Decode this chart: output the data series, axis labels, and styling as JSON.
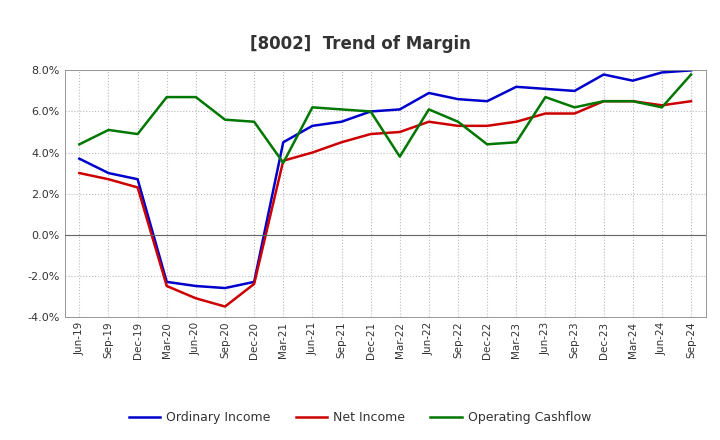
{
  "title": "[8002]  Trend of Margin",
  "x_labels": [
    "Jun-19",
    "Sep-19",
    "Dec-19",
    "Mar-20",
    "Jun-20",
    "Sep-20",
    "Dec-20",
    "Mar-21",
    "Jun-21",
    "Sep-21",
    "Dec-21",
    "Mar-22",
    "Jun-22",
    "Sep-22",
    "Dec-22",
    "Mar-23",
    "Jun-23",
    "Sep-23",
    "Dec-23",
    "Mar-24",
    "Jun-24",
    "Sep-24"
  ],
  "ordinary_income": [
    3.7,
    3.0,
    2.7,
    -2.3,
    -2.5,
    -2.6,
    -2.3,
    4.5,
    5.3,
    5.5,
    6.0,
    6.1,
    6.9,
    6.6,
    6.5,
    7.2,
    7.1,
    7.0,
    7.8,
    7.5,
    7.9,
    8.0
  ],
  "net_income": [
    3.0,
    2.7,
    2.3,
    -2.5,
    -3.1,
    -3.5,
    -2.4,
    3.6,
    4.0,
    4.5,
    4.9,
    5.0,
    5.5,
    5.3,
    5.3,
    5.5,
    5.9,
    5.9,
    6.5,
    6.5,
    6.3,
    6.5
  ],
  "operating_cashflow": [
    4.4,
    5.1,
    4.9,
    6.7,
    6.7,
    5.6,
    5.5,
    3.5,
    6.2,
    6.1,
    6.0,
    3.8,
    6.1,
    5.5,
    4.4,
    4.5,
    6.7,
    6.2,
    6.5,
    6.5,
    6.2,
    7.8
  ],
  "ylim": [
    -4.0,
    8.0
  ],
  "yticks": [
    -4.0,
    -2.0,
    0.0,
    2.0,
    4.0,
    6.0,
    8.0
  ],
  "ordinary_income_color": "#0000cc",
  "net_income_color": "#cc0000",
  "operating_cashflow_color": "#007700",
  "background_color": "#ffffff",
  "grid_color": "#bbbbbb",
  "title_color": "#333333",
  "legend_labels": [
    "Ordinary Income",
    "Net Income",
    "Operating Cashflow"
  ]
}
